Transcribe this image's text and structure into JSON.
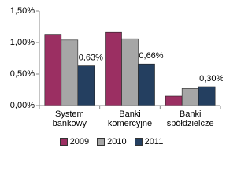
{
  "chart_data": {
    "type": "bar",
    "categories": [
      "System bankowy",
      "Banki komercyjne",
      "Banki spółdzielcze"
    ],
    "series": [
      {
        "name": "2009",
        "color": "#9b2f62",
        "values": [
          1.13,
          1.16,
          0.15
        ]
      },
      {
        "name": "2010",
        "color": "#a6a6a6",
        "values": [
          1.04,
          1.06,
          0.27
        ]
      },
      {
        "name": "2011",
        "color": "#243f60",
        "values": [
          0.63,
          0.66,
          0.3
        ],
        "value_labels": [
          "0,63%",
          "0,66%",
          "0,30%"
        ]
      }
    ],
    "ylim": [
      0,
      1.5
    ],
    "yticks": [
      {
        "value": 0,
        "label": "0,00%"
      },
      {
        "value": 0.5,
        "label": "0,50%"
      },
      {
        "value": 1.0,
        "label": "1,00%"
      },
      {
        "value": 1.5,
        "label": "1,50%"
      }
    ],
    "grid": false,
    "legend": "bottom"
  }
}
